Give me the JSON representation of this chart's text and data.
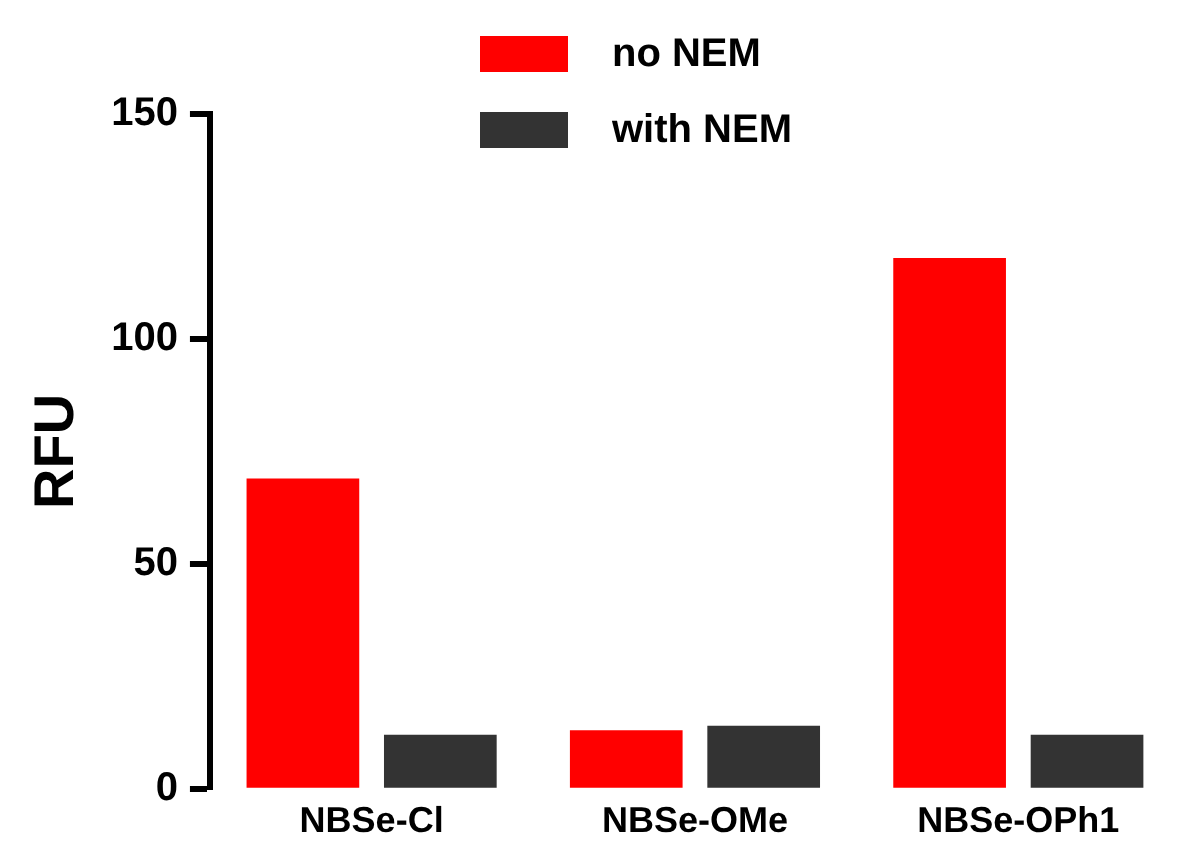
{
  "chart_data": {
    "type": "bar",
    "ylabel": "RFU",
    "categories": [
      "NBSe-Cl",
      "NBSe-OMe",
      "NBSe-OPh1"
    ],
    "series": [
      {
        "name": "no NEM",
        "color": "#ff0000",
        "values": [
          69,
          13,
          118
        ]
      },
      {
        "name": "with NEM",
        "color": "#333333",
        "values": [
          12,
          14,
          12
        ]
      }
    ],
    "ylim": [
      0,
      150
    ],
    "yticks": [
      0,
      50,
      100,
      150
    ],
    "grid": false,
    "legend": "top"
  }
}
